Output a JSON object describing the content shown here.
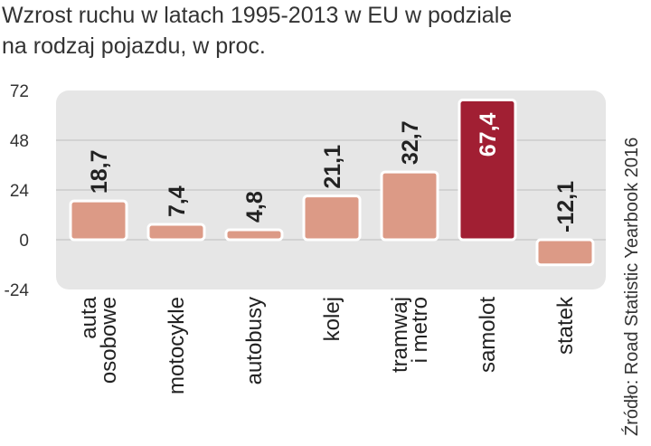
{
  "title": {
    "line1": "Wzrost ruchu w latach 1995-2013 w EU w podziale",
    "line2": "na rodzaj pojazdu, w proc."
  },
  "source": "Źródło: Road Statistic Yearbook 2016",
  "colors": {
    "bar": "#dc9a86",
    "highlight": "#a11f33",
    "background_panel": "#e6e6e6",
    "label_dark": "#222222",
    "label_light": "#ffffff"
  },
  "chart_data": {
    "type": "bar",
    "categories": [
      [
        "auta",
        "osobowe"
      ],
      [
        "motocykle"
      ],
      [
        "autobusy"
      ],
      [
        "kolej"
      ],
      [
        "tramwaj",
        "i metro"
      ],
      [
        "samolot"
      ],
      [
        "statek"
      ]
    ],
    "values": [
      18.7,
      7.4,
      4.8,
      21.1,
      32.7,
      67.4,
      -12.1
    ],
    "value_labels": [
      "18,7",
      "7,4",
      "4,8",
      "21,1",
      "32,7",
      "67,4",
      "-12,1"
    ],
    "highlight_index": 5,
    "ylim": [
      -24,
      72
    ],
    "yticks": [
      72,
      48,
      24,
      0,
      -24
    ],
    "grid": true
  }
}
